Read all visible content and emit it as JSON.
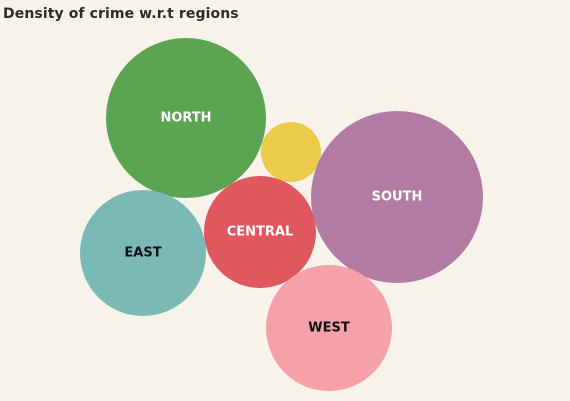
{
  "chart_data": {
    "type": "bubble",
    "title": "Density of crime w.r.t regions",
    "bubbles": [
      {
        "label": "NORTH",
        "color": "#5ba552",
        "label_color": "#ffffff"
      },
      {
        "label": "",
        "color": "#ecca4a",
        "label_color": "#ffffff"
      },
      {
        "label": "SOUTH",
        "color": "#b27ca2",
        "label_color": "#ffffff"
      },
      {
        "label": "CENTRAL",
        "color": "#e0575d",
        "label_color": "#ffffff"
      },
      {
        "label": "EAST",
        "color": "#7bb9b4",
        "label_color": "#111111"
      },
      {
        "label": "WEST",
        "color": "#f6a0a7",
        "label_color": "#111111"
      }
    ]
  }
}
